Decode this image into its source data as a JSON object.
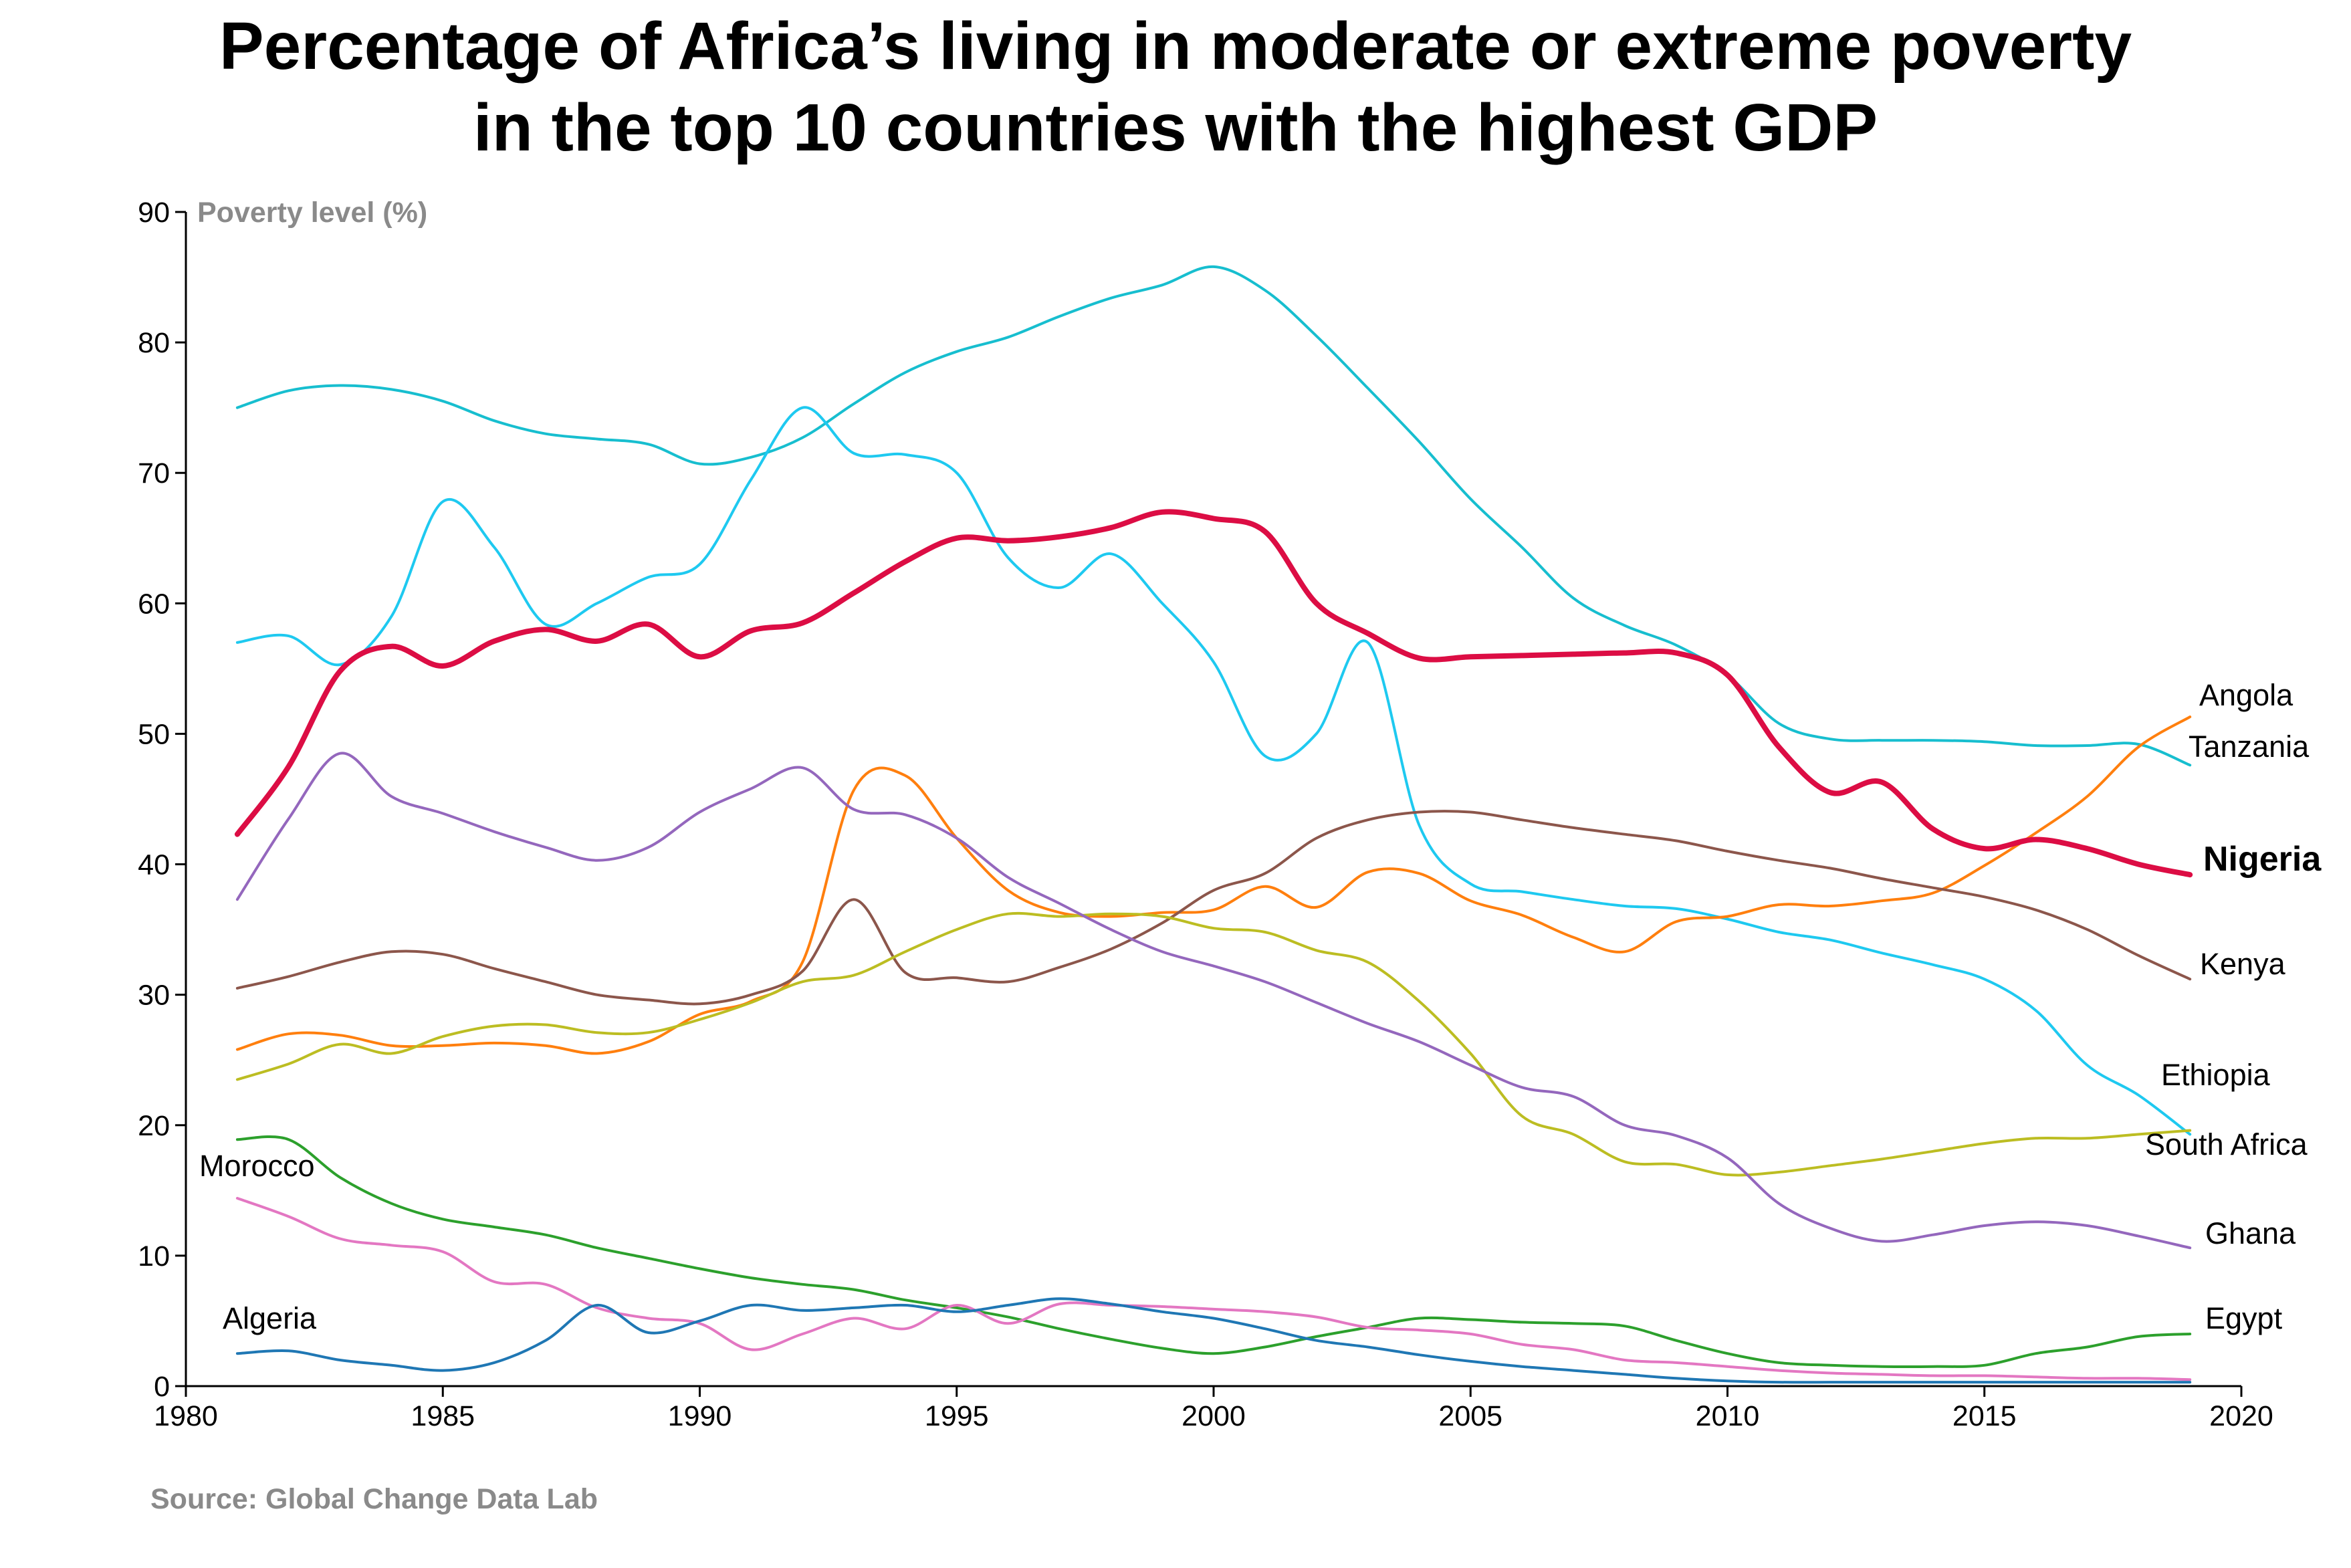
{
  "title_line1": "Percentage of Africa’s living in moderate or extreme poverty",
  "title_line2": "in the top 10 countries with the highest GDP",
  "source": "Source: Global Change Data Lab",
  "chart_data": {
    "type": "line",
    "ylabel": "Poverty level (%)",
    "xlim": [
      1980,
      2020
    ],
    "ylim": [
      0,
      90
    ],
    "x_ticks": [
      1980,
      1985,
      1990,
      1995,
      2000,
      2005,
      2010,
      2015,
      2020
    ],
    "y_ticks": [
      0,
      10,
      20,
      30,
      40,
      50,
      60,
      70,
      80,
      90
    ],
    "grid": false,
    "series": [
      {
        "name": "Tanzania",
        "color": "#17becf",
        "width": 4,
        "bold": false,
        "x": [
          1981,
          1982,
          1983,
          1984,
          1985,
          1986,
          1987,
          1988,
          1989,
          1990,
          1991,
          1992,
          1993,
          1994,
          1995,
          1996,
          1997,
          1998,
          1999,
          2000,
          2001,
          2002,
          2003,
          2004,
          2005,
          2006,
          2007,
          2008,
          2009,
          2010,
          2011,
          2012,
          2013,
          2014,
          2015,
          2016,
          2017,
          2018,
          2019
        ],
        "y": [
          75,
          76.3,
          76.7,
          76.4,
          75.5,
          74,
          73,
          72.6,
          72.2,
          70.7,
          71.2,
          72.7,
          75.3,
          77.7,
          79.3,
          80.4,
          82,
          83.4,
          84.4,
          85.8,
          84,
          80.5,
          76.5,
          72.4,
          68,
          64.3,
          60.4,
          58.3,
          56.8,
          54.5,
          50.8,
          49.6,
          49.5,
          49.5,
          49.4,
          49.1,
          49.1,
          49.2,
          47.6
        ]
      },
      {
        "name": "Ethiopia",
        "color": "#1ec9f0",
        "width": 4,
        "bold": false,
        "x": [
          1981,
          1982,
          1983,
          1984,
          1985,
          1986,
          1987,
          1988,
          1989,
          1990,
          1991,
          1992,
          1993,
          1994,
          1995,
          1996,
          1997,
          1998,
          1999,
          2000,
          2001,
          2002,
          2003,
          2004,
          2005,
          2006,
          2007,
          2008,
          2009,
          2010,
          2011,
          2012,
          2013,
          2014,
          2015,
          2016,
          2017,
          2018,
          2019
        ],
        "y": [
          57,
          57.5,
          55.3,
          59,
          67.8,
          64.3,
          58.4,
          60,
          62,
          63,
          69.5,
          75,
          71.5,
          71.4,
          70,
          63.5,
          61.2,
          63.8,
          60,
          55.5,
          48.3,
          50,
          57,
          43,
          38.5,
          37.9,
          37.3,
          36.8,
          36.6,
          35.8,
          34.8,
          34.2,
          33.2,
          32.3,
          31.2,
          28.8,
          24.6,
          22.3,
          19.3
        ]
      },
      {
        "name": "Nigeria",
        "color": "#dc0d44",
        "width": 8,
        "bold": true,
        "x": [
          1981,
          1982,
          1983,
          1984,
          1985,
          1986,
          1987,
          1988,
          1989,
          1990,
          1991,
          1992,
          1993,
          1994,
          1995,
          1996,
          1997,
          1998,
          1999,
          2000,
          2001,
          2002,
          2003,
          2004,
          2005,
          2006,
          2007,
          2008,
          2009,
          2010,
          2011,
          2012,
          2013,
          2014,
          2015,
          2016,
          2017,
          2018,
          2019
        ],
        "y": [
          42.3,
          47.5,
          54.8,
          56.7,
          55.2,
          57.1,
          58,
          57.1,
          58.4,
          55.9,
          57.9,
          58.5,
          60.8,
          63.2,
          65,
          64.8,
          65.1,
          65.8,
          67,
          66.5,
          65.5,
          60,
          57.7,
          55.8,
          55.9,
          56,
          56.1,
          56.2,
          56.2,
          54.5,
          49,
          45.5,
          46.3,
          42.7,
          41.2,
          41.9,
          41.2,
          40,
          39.2
        ]
      },
      {
        "name": "Angola",
        "color": "#ff7f0e",
        "width": 4,
        "bold": false,
        "x": [
          1981,
          1982,
          1983,
          1984,
          1985,
          1986,
          1987,
          1988,
          1989,
          1990,
          1991,
          1992,
          1993,
          1994,
          1995,
          1996,
          1997,
          1998,
          1999,
          2000,
          2001,
          2002,
          2003,
          2004,
          2005,
          2006,
          2007,
          2008,
          2009,
          2010,
          2011,
          2012,
          2013,
          2014,
          2015,
          2016,
          2017,
          2018,
          2019
        ],
        "y": [
          25.8,
          27,
          26.9,
          26.1,
          26.1,
          26.3,
          26.1,
          25.5,
          26.4,
          28.5,
          29.5,
          32.5,
          45.7,
          46.8,
          42,
          38,
          36.3,
          36,
          36.3,
          36.5,
          38.3,
          36.7,
          39.4,
          39.3,
          37.2,
          36.1,
          34.4,
          33.3,
          35.6,
          36,
          36.9,
          36.8,
          37.2,
          37.8,
          39.9,
          42.4,
          45.2,
          49,
          51.3
        ]
      },
      {
        "name": "Kenya",
        "color": "#8c564b",
        "width": 4,
        "bold": false,
        "x": [
          1981,
          1982,
          1983,
          1984,
          1985,
          1986,
          1987,
          1988,
          1989,
          1990,
          1991,
          1992,
          1993,
          1994,
          1995,
          1996,
          1997,
          1998,
          1999,
          2000,
          2001,
          2002,
          2003,
          2004,
          2005,
          2006,
          2007,
          2008,
          2009,
          2010,
          2011,
          2012,
          2013,
          2014,
          2015,
          2016,
          2017,
          2018,
          2019
        ],
        "y": [
          30.5,
          31.4,
          32.5,
          33.3,
          33.1,
          32,
          31,
          30,
          29.6,
          29.3,
          30,
          31.8,
          37.3,
          31.7,
          31.3,
          31,
          32.1,
          33.5,
          35.5,
          38,
          39.3,
          42,
          43.4,
          44,
          44,
          43.4,
          42.8,
          42.3,
          41.8,
          41,
          40.3,
          39.7,
          38.9,
          38.2,
          37.5,
          36.5,
          35,
          33,
          31.2
        ]
      },
      {
        "name": "South Africa",
        "color": "#bcbd22",
        "width": 4,
        "bold": false,
        "x": [
          1981,
          1982,
          1983,
          1984,
          1985,
          1986,
          1987,
          1988,
          1989,
          1990,
          1991,
          1992,
          1993,
          1994,
          1995,
          1996,
          1997,
          1998,
          1999,
          2000,
          2001,
          2002,
          2003,
          2004,
          2005,
          2006,
          2007,
          2008,
          2009,
          2010,
          2011,
          2012,
          2013,
          2014,
          2015,
          2016,
          2017,
          2018,
          2019
        ],
        "y": [
          23.5,
          24.7,
          26.2,
          25.5,
          26.8,
          27.6,
          27.7,
          27.1,
          27.1,
          28.1,
          29.4,
          31,
          31.5,
          33.3,
          35,
          36.2,
          36,
          36.2,
          36,
          35.1,
          34.8,
          33.4,
          32.5,
          29.5,
          25.5,
          20.7,
          19.3,
          17.2,
          17,
          16.2,
          16.4,
          16.9,
          17.4,
          18,
          18.6,
          19,
          19,
          19.3,
          19.6
        ]
      },
      {
        "name": "Ghana",
        "color": "#9467bd",
        "width": 4,
        "bold": false,
        "x": [
          1981,
          1982,
          1983,
          1984,
          1985,
          1986,
          1987,
          1988,
          1989,
          1990,
          1991,
          1992,
          1993,
          1994,
          1995,
          1996,
          1997,
          1998,
          1999,
          2000,
          2001,
          2002,
          2003,
          2004,
          2005,
          2006,
          2007,
          2008,
          2009,
          2010,
          2011,
          2012,
          2013,
          2014,
          2015,
          2016,
          2017,
          2018,
          2019
        ],
        "y": [
          37.3,
          43.5,
          48.5,
          45.2,
          43.9,
          42.5,
          41.3,
          40.3,
          41.3,
          44,
          45.8,
          47.4,
          44.2,
          43.8,
          42,
          39,
          37,
          35,
          33.3,
          32.2,
          31,
          29.4,
          27.8,
          26.4,
          24.6,
          22.9,
          22.2,
          20,
          19.2,
          17.5,
          14,
          12.1,
          11.1,
          11.6,
          12.3,
          12.6,
          12.3,
          11.5,
          10.6
        ]
      },
      {
        "name": "Egypt",
        "color": "#2ca02c",
        "width": 4,
        "bold": false,
        "x": [
          1981,
          1982,
          1983,
          1984,
          1985,
          1986,
          1987,
          1988,
          1989,
          1990,
          1991,
          1992,
          1993,
          1994,
          1995,
          1996,
          1997,
          1998,
          1999,
          2000,
          2001,
          2002,
          2003,
          2004,
          2005,
          2006,
          2007,
          2008,
          2009,
          2010,
          2011,
          2012,
          2013,
          2014,
          2015,
          2016,
          2017,
          2018,
          2019
        ],
        "y": [
          18.9,
          18.9,
          16,
          14,
          12.8,
          12.2,
          11.6,
          10.6,
          9.8,
          9,
          8.3,
          7.8,
          7.4,
          6.6,
          6,
          5.3,
          4.4,
          3.6,
          2.9,
          2.5,
          3,
          3.8,
          4.5,
          5.2,
          5.1,
          4.9,
          4.8,
          4.6,
          3.5,
          2.5,
          1.8,
          1.6,
          1.5,
          1.5,
          1.6,
          2.5,
          3,
          3.8,
          4
        ]
      },
      {
        "name": "Morocco",
        "color": "#e377c2",
        "width": 4,
        "bold": false,
        "x": [
          1981,
          1982,
          1983,
          1984,
          1985,
          1986,
          1987,
          1988,
          1989,
          1990,
          1991,
          1992,
          1993,
          1994,
          1995,
          1996,
          1997,
          1998,
          1999,
          2000,
          2001,
          2002,
          2003,
          2004,
          2005,
          2006,
          2007,
          2008,
          2009,
          2010,
          2011,
          2012,
          2013,
          2014,
          2015,
          2016,
          2017,
          2018,
          2019
        ],
        "y": [
          14.4,
          13,
          11.3,
          10.8,
          10.3,
          8,
          7.8,
          6,
          5.2,
          4.8,
          2.8,
          4,
          5.2,
          4.4,
          6.2,
          4.8,
          6.3,
          6.2,
          6.1,
          5.9,
          5.7,
          5.3,
          4.5,
          4.3,
          4,
          3.2,
          2.8,
          2,
          1.8,
          1.5,
          1.2,
          1,
          0.9,
          0.8,
          0.8,
          0.7,
          0.6,
          0.6,
          0.5
        ]
      },
      {
        "name": "Algeria",
        "color": "#1f77b4",
        "width": 4,
        "bold": false,
        "x": [
          1981,
          1982,
          1983,
          1984,
          1985,
          1986,
          1987,
          1988,
          1989,
          1990,
          1991,
          1992,
          1993,
          1994,
          1995,
          1996,
          1997,
          1998,
          1999,
          2000,
          2001,
          2002,
          2003,
          2004,
          2005,
          2006,
          2007,
          2008,
          2009,
          2010,
          2011,
          2012,
          2013,
          2014,
          2015,
          2016,
          2017,
          2018,
          2019
        ],
        "y": [
          2.5,
          2.7,
          2,
          1.6,
          1.2,
          1.8,
          3.5,
          6.2,
          4.1,
          5,
          6.2,
          5.8,
          6,
          6.2,
          5.7,
          6.2,
          6.7,
          6.3,
          5.7,
          5.2,
          4.4,
          3.5,
          3,
          2.4,
          1.9,
          1.5,
          1.2,
          0.9,
          0.6,
          0.4,
          0.3,
          0.3,
          0.3,
          0.3,
          0.3,
          0.3,
          0.3,
          0.3,
          0.3
        ]
      }
    ]
  }
}
